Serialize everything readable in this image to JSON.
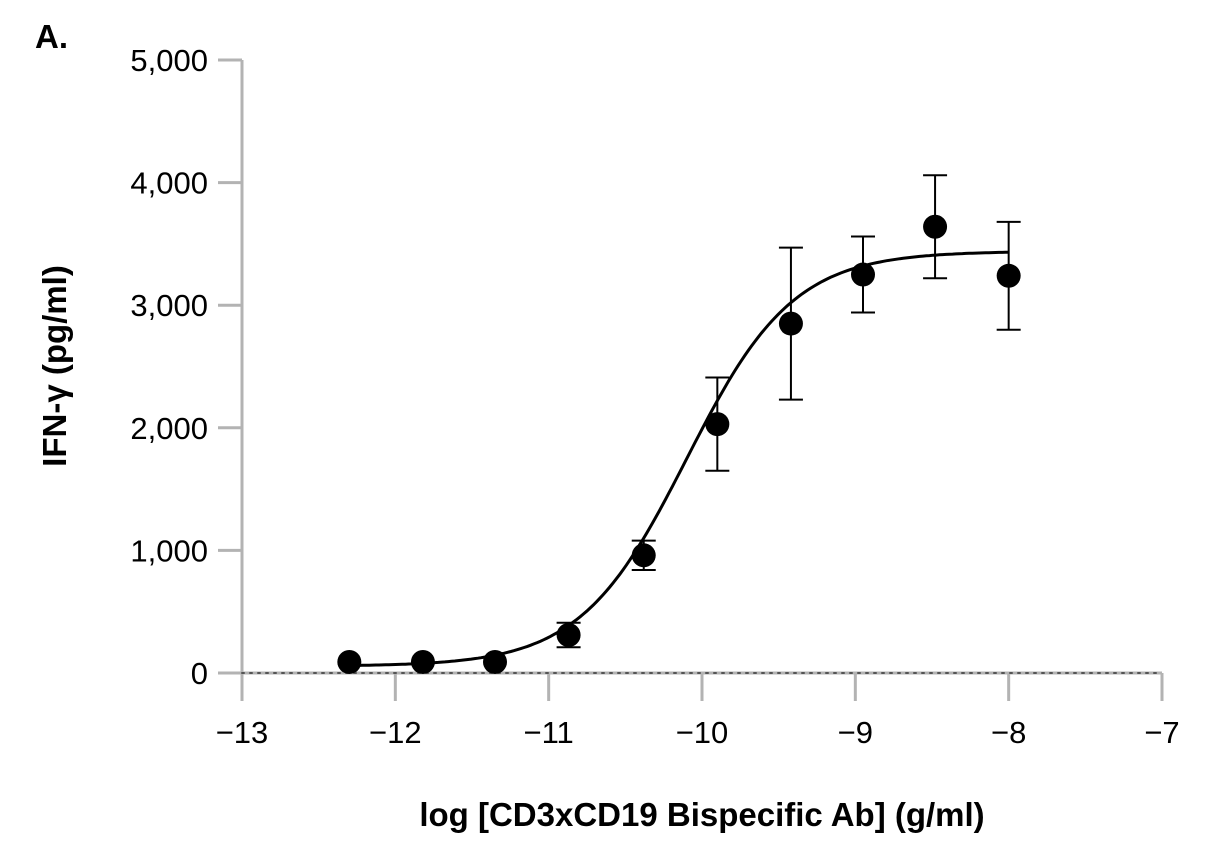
{
  "panel_label": "A.",
  "chart_data": {
    "type": "scatter",
    "title": "",
    "xlabel": "log [CD3xCD19 Bispecific Ab] (g/ml)",
    "ylabel": "IFN-γ (pg/ml)",
    "xlim": [
      -13,
      -7
    ],
    "ylim": [
      0,
      5000
    ],
    "xticks": [
      -13,
      -12,
      -11,
      -10,
      -9,
      -8,
      -7
    ],
    "xtick_labels": [
      "−13",
      "−12",
      "−11",
      "−10",
      "−9",
      "−8",
      "−7"
    ],
    "yticks": [
      0,
      1000,
      2000,
      3000,
      4000,
      5000
    ],
    "ytick_labels": [
      "0",
      "1,000",
      "2,000",
      "3,000",
      "4,000",
      "5,000"
    ],
    "grid": false,
    "baseline": "dotted line at y = 0",
    "series": [
      {
        "marker": "filled-circle",
        "color": "#000000",
        "points": [
          {
            "x": -12.3,
            "y": 90,
            "err": 0
          },
          {
            "x": -11.82,
            "y": 90,
            "err": 0
          },
          {
            "x": -11.35,
            "y": 90,
            "err": 0
          },
          {
            "x": -10.87,
            "y": 310,
            "err": 100
          },
          {
            "x": -10.38,
            "y": 960,
            "err": 120
          },
          {
            "x": -9.9,
            "y": 2030,
            "err": 380
          },
          {
            "x": -9.42,
            "y": 2850,
            "err": 620
          },
          {
            "x": -8.95,
            "y": 3250,
            "err": 310
          },
          {
            "x": -8.48,
            "y": 3640,
            "err": 420
          },
          {
            "x": -8.0,
            "y": 3240,
            "err": 440
          }
        ]
      }
    ],
    "fit": {
      "type": "sigmoid",
      "bottom": 55,
      "top": 3440,
      "logEC50": -10.1,
      "hill": 1.25,
      "x_range": [
        -12.3,
        -8.0
      ],
      "color": "#000000"
    }
  }
}
